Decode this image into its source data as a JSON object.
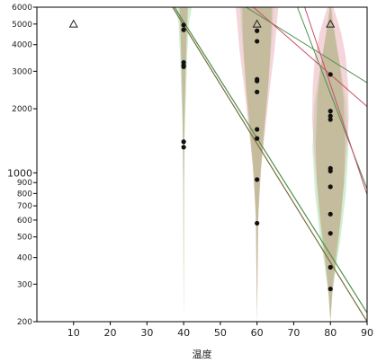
{
  "chart_data": {
    "type": "scatter",
    "title": "",
    "xlabel": "温度",
    "ylabel": "",
    "xlim": [
      0,
      90
    ],
    "ylim": [
      200,
      6000
    ],
    "yscale": "log",
    "grid": false,
    "xticks": [
      10,
      20,
      30,
      40,
      50,
      60,
      70,
      80,
      90
    ],
    "yticks": [
      {
        "value": 200,
        "label": "200"
      },
      {
        "value": 300,
        "label": "300"
      },
      {
        "value": 400,
        "label": "400"
      },
      {
        "value": 500,
        "label": "500"
      },
      {
        "value": 600,
        "label": "600"
      },
      {
        "value": 700,
        "label": "700"
      },
      {
        "value": 800,
        "label": "800"
      },
      {
        "value": 900,
        "label": "900"
      },
      {
        "value": 1000,
        "label": "1000",
        "major": true
      },
      {
        "value": 2000,
        "label": "2000"
      },
      {
        "value": 3000,
        "label": "3000"
      },
      {
        "value": 4000,
        "label": "4000"
      },
      {
        "value": 5000,
        "label": "5000"
      },
      {
        "value": 6000,
        "label": "6000"
      }
    ],
    "points": [
      {
        "x": 40,
        "y": 4950
      },
      {
        "x": 40,
        "y": 4700
      },
      {
        "x": 40,
        "y": 3300
      },
      {
        "x": 40,
        "y": 3200
      },
      {
        "x": 40,
        "y": 3150
      },
      {
        "x": 40,
        "y": 1400
      },
      {
        "x": 40,
        "y": 1320
      },
      {
        "x": 60,
        "y": 4650
      },
      {
        "x": 60,
        "y": 4150
      },
      {
        "x": 60,
        "y": 2750
      },
      {
        "x": 60,
        "y": 2700
      },
      {
        "x": 60,
        "y": 2400
      },
      {
        "x": 60,
        "y": 1600
      },
      {
        "x": 60,
        "y": 1450
      },
      {
        "x": 60,
        "y": 930
      },
      {
        "x": 60,
        "y": 580
      },
      {
        "x": 80,
        "y": 2900
      },
      {
        "x": 80,
        "y": 1950
      },
      {
        "x": 80,
        "y": 1850
      },
      {
        "x": 80,
        "y": 1780
      },
      {
        "x": 80,
        "y": 1050
      },
      {
        "x": 80,
        "y": 1020
      },
      {
        "x": 80,
        "y": 860
      },
      {
        "x": 80,
        "y": 640
      },
      {
        "x": 80,
        "y": 520
      },
      {
        "x": 80,
        "y": 360
      },
      {
        "x": 80,
        "y": 285
      }
    ],
    "censored_points": [
      {
        "x": 10,
        "y": 5000
      },
      {
        "x": 60,
        "y": 5000
      },
      {
        "x": 80,
        "y": 5000
      }
    ],
    "density_bands": [
      {
        "x": 40,
        "color": "#b5e3b5",
        "opacity": 0.6,
        "profile": [
          [
            200,
            0
          ],
          [
            700,
            0.1
          ],
          [
            1500,
            0.25
          ],
          [
            2500,
            0.7
          ],
          [
            3600,
            1.0
          ],
          [
            5000,
            1.4
          ],
          [
            6000,
            2.2
          ]
        ]
      },
      {
        "x": 40,
        "color": "#e7a4ad",
        "opacity": 0.45,
        "profile": [
          [
            200,
            0
          ],
          [
            1000,
            0.1
          ],
          [
            2000,
            0.25
          ],
          [
            3200,
            0.6
          ],
          [
            4500,
            0.8
          ],
          [
            6000,
            1.0
          ]
        ]
      },
      {
        "x": 40,
        "color": "#b8b089",
        "opacity": 0.65,
        "profile": [
          [
            200,
            0
          ],
          [
            900,
            0.1
          ],
          [
            1800,
            0.25
          ],
          [
            3000,
            0.55
          ],
          [
            4500,
            0.85
          ],
          [
            6000,
            1.2
          ]
        ]
      },
      {
        "x": 60,
        "color": "#b5e3b5",
        "opacity": 0.6,
        "profile": [
          [
            200,
            0
          ],
          [
            550,
            0.12
          ],
          [
            900,
            0.6
          ],
          [
            1400,
            1.4
          ],
          [
            2200,
            2.6
          ],
          [
            3200,
            3.4
          ],
          [
            4500,
            4.2
          ],
          [
            6000,
            4.6
          ]
        ]
      },
      {
        "x": 60,
        "color": "#e7a4ad",
        "opacity": 0.45,
        "profile": [
          [
            200,
            0
          ],
          [
            700,
            0.4
          ],
          [
            1100,
            1.2
          ],
          [
            1700,
            2.4
          ],
          [
            2600,
            3.6
          ],
          [
            3800,
            4.8
          ],
          [
            5000,
            5.4
          ],
          [
            6000,
            5.8
          ]
        ]
      },
      {
        "x": 60,
        "color": "#b8b089",
        "opacity": 0.65,
        "profile": [
          [
            200,
            0
          ],
          [
            600,
            0.3
          ],
          [
            1000,
            1.0
          ],
          [
            1600,
            2.0
          ],
          [
            2500,
            3.0
          ],
          [
            3600,
            3.6
          ],
          [
            4800,
            3.9
          ],
          [
            6000,
            4.0
          ]
        ]
      },
      {
        "x": 80,
        "color": "#b5e3b5",
        "opacity": 0.6,
        "profile": [
          [
            200,
            0
          ],
          [
            260,
            0.4
          ],
          [
            350,
            1.4
          ],
          [
            500,
            2.8
          ],
          [
            800,
            4.2
          ],
          [
            1300,
            4.9
          ],
          [
            2100,
            4.4
          ],
          [
            3000,
            3.0
          ],
          [
            4000,
            1.6
          ],
          [
            5200,
            0.5
          ],
          [
            6000,
            0.2
          ]
        ]
      },
      {
        "x": 80,
        "color": "#e7a4ad",
        "opacity": 0.45,
        "profile": [
          [
            200,
            0
          ],
          [
            300,
            0.5
          ],
          [
            450,
            1.6
          ],
          [
            700,
            3.0
          ],
          [
            1100,
            4.2
          ],
          [
            1800,
            5.0
          ],
          [
            2600,
            4.8
          ],
          [
            3500,
            4.2
          ],
          [
            4500,
            3.0
          ],
          [
            5500,
            1.5
          ],
          [
            6000,
            0.8
          ]
        ]
      },
      {
        "x": 80,
        "color": "#b8b089",
        "opacity": 0.65,
        "profile": [
          [
            200,
            0
          ],
          [
            280,
            0.6
          ],
          [
            400,
            1.6
          ],
          [
            600,
            2.8
          ],
          [
            900,
            3.7
          ],
          [
            1400,
            4.0
          ],
          [
            2200,
            3.6
          ],
          [
            3200,
            2.6
          ],
          [
            4300,
            1.4
          ],
          [
            5400,
            0.5
          ],
          [
            6000,
            0.2
          ]
        ]
      }
    ],
    "lines": [
      {
        "color": "#7a6e3a",
        "width": 1.2,
        "points": [
          {
            "x": 37,
            "y": 6000
          },
          {
            "x": 90,
            "y": 200
          }
        ]
      },
      {
        "color": "#4f8f4f",
        "width": 1.2,
        "points": [
          {
            "x": 37.5,
            "y": 6000
          },
          {
            "x": 90,
            "y": 220
          }
        ]
      },
      {
        "color": "#4f8f4f",
        "width": 1.0,
        "points": [
          {
            "x": 57,
            "y": 6000
          },
          {
            "x": 90,
            "y": 2650
          }
        ]
      },
      {
        "color": "#c8506a",
        "width": 1.0,
        "points": [
          {
            "x": 59,
            "y": 6000
          },
          {
            "x": 90,
            "y": 2050
          }
        ]
      },
      {
        "color": "#4f8f4f",
        "width": 1.0,
        "points": [
          {
            "x": 71,
            "y": 6000
          },
          {
            "x": 90,
            "y": 840
          }
        ]
      },
      {
        "color": "#c8506a",
        "width": 1.0,
        "points": [
          {
            "x": 73,
            "y": 6000
          },
          {
            "x": 90,
            "y": 790
          }
        ]
      }
    ]
  }
}
